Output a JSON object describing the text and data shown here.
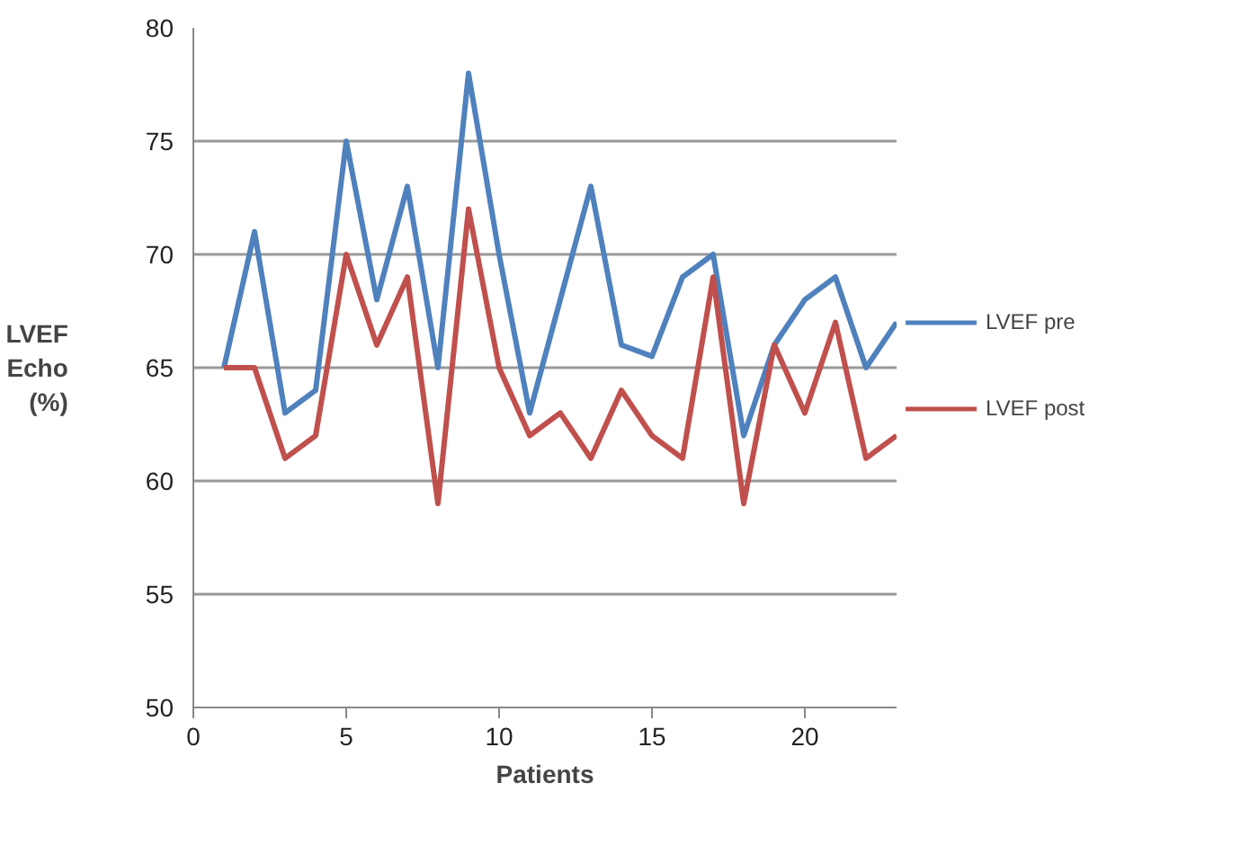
{
  "chart_data": {
    "type": "line",
    "xlabel": "Patients",
    "ylabel": "LVEF Echo (%)",
    "x": [
      1,
      2,
      3,
      4,
      5,
      6,
      7,
      8,
      9,
      10,
      11,
      12,
      13,
      14,
      15,
      16,
      17,
      18,
      19,
      20,
      21,
      22,
      23
    ],
    "series": [
      {
        "name": "LVEF pre",
        "color": "#4f81bd",
        "values": [
          65,
          71,
          63,
          64,
          75,
          68,
          73,
          65,
          78,
          70,
          63,
          68,
          73,
          66,
          65.5,
          69,
          70,
          62,
          66,
          68,
          69,
          65,
          67
        ]
      },
      {
        "name": "LVEF post",
        "color": "#c0504d",
        "values": [
          65,
          65,
          61,
          62,
          70,
          66,
          69,
          59,
          72,
          65,
          62,
          63,
          61,
          64,
          62,
          61,
          69,
          59,
          66,
          63,
          67,
          61,
          62
        ]
      }
    ],
    "xlim": [
      0,
      23
    ],
    "ylim": [
      50,
      80
    ],
    "xticks": [
      0,
      5,
      10,
      15,
      20
    ],
    "yticks": [
      50,
      55,
      60,
      65,
      70,
      75,
      80
    ],
    "grid": "y",
    "legend": "right",
    "marker": "none",
    "line_style": "solid"
  }
}
